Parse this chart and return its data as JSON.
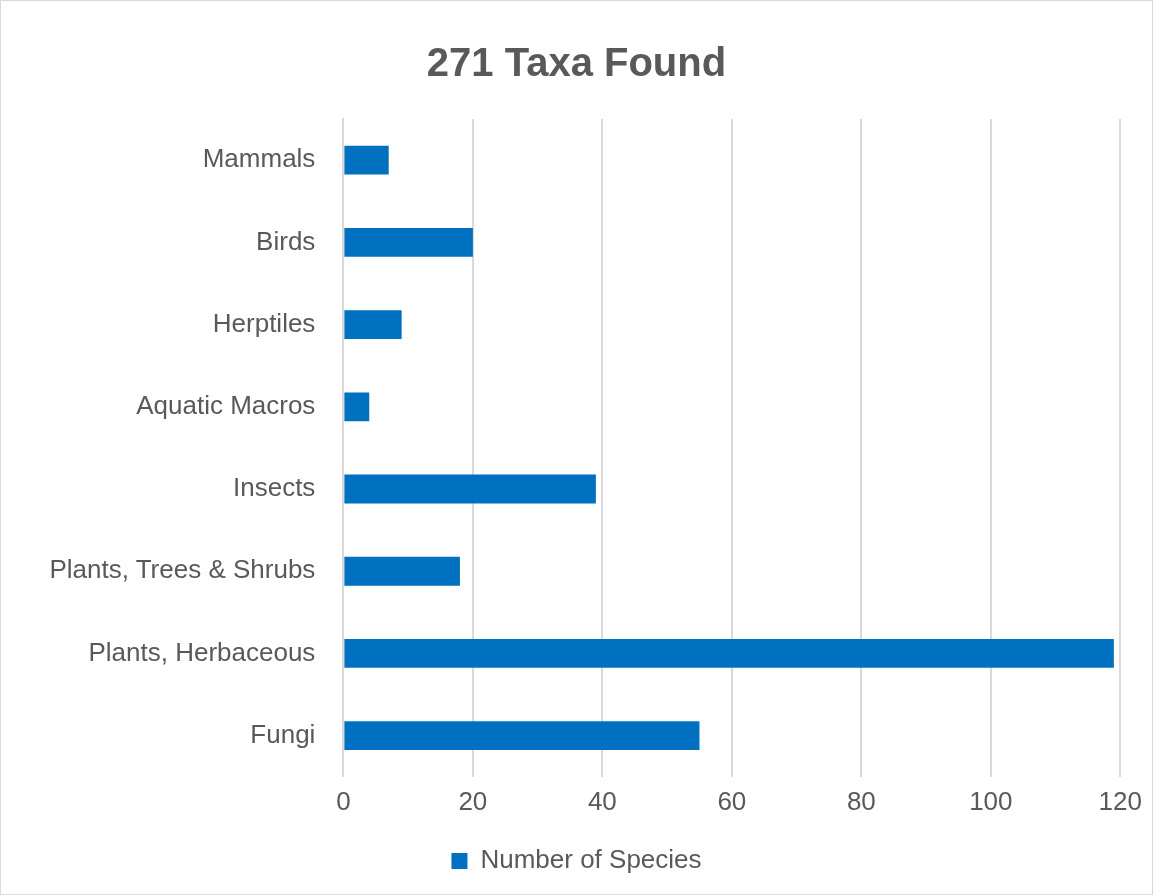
{
  "chart_data": {
    "type": "bar",
    "orientation": "horizontal",
    "title": "271 Taxa Found",
    "categories": [
      "Mammals",
      "Birds",
      "Herptiles",
      "Aquatic Macros",
      "Insects",
      "Plants, Trees & Shrubs",
      "Plants, Herbaceous",
      "Fungi"
    ],
    "series": [
      {
        "name": "Number of Species",
        "color": "#0070c0",
        "values": [
          7,
          20,
          9,
          4,
          39,
          18,
          119,
          55
        ]
      }
    ],
    "xlim": [
      0,
      120
    ],
    "xticks": [
      0,
      20,
      40,
      60,
      80,
      100,
      120
    ],
    "grid": "x",
    "legend": "bottom"
  }
}
